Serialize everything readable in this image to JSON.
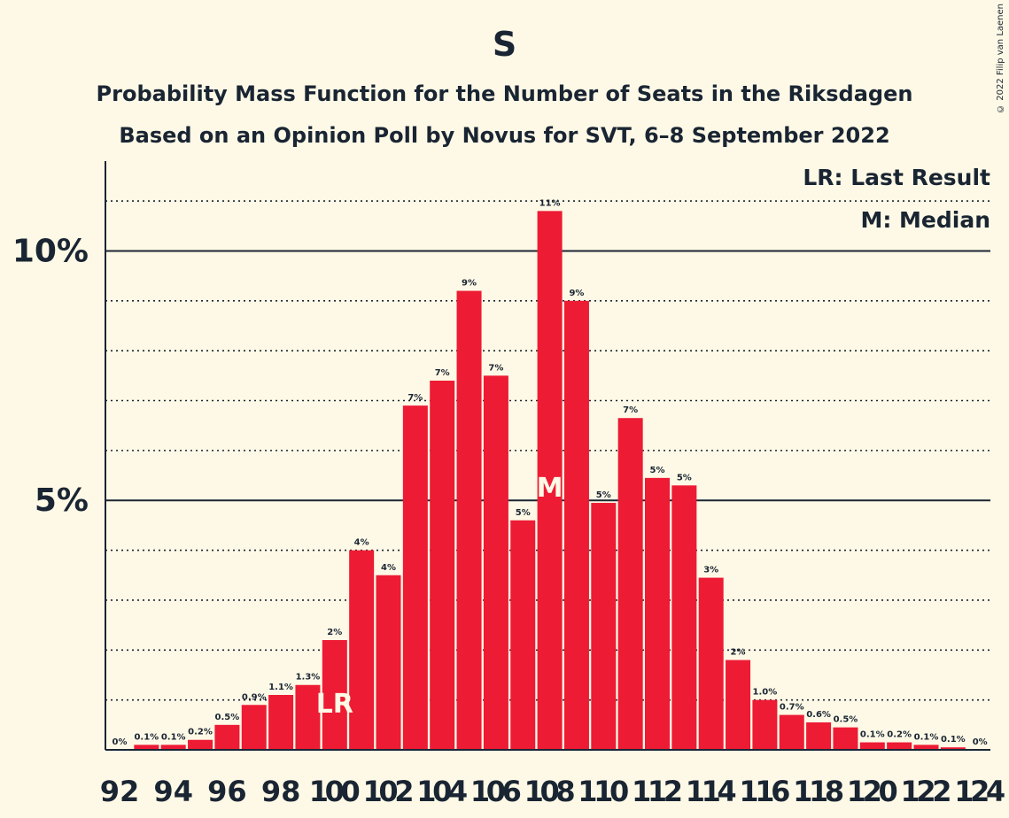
{
  "title": "S",
  "subtitle1": "Probability Mass Function for the Number of Seats in the Riksdagen",
  "subtitle2": "Based on an Opinion Poll by Novus for SVT, 6–8 September 2022",
  "copyright": "© 2022 Filip van Laenen",
  "legend": {
    "last_result": "LR: Last Result",
    "median": "M: Median"
  },
  "colors": {
    "bar": "#ed1b34",
    "background": "#fef9e6",
    "text": "#1a2533",
    "marker": "#fef9e6"
  },
  "chart_data": {
    "type": "bar",
    "x": [
      92,
      93,
      94,
      95,
      96,
      97,
      98,
      99,
      100,
      101,
      102,
      103,
      104,
      105,
      106,
      107,
      108,
      109,
      110,
      111,
      112,
      113,
      114,
      115,
      116,
      117,
      118,
      119,
      120,
      121,
      122,
      123,
      124
    ],
    "values": [
      0,
      0.1,
      0.1,
      0.2,
      0.5,
      0.9,
      1.1,
      1.3,
      2.2,
      4.0,
      3.5,
      6.9,
      7.4,
      9.2,
      7.5,
      4.6,
      10.8,
      9.0,
      4.95,
      6.65,
      5.45,
      5.3,
      3.45,
      1.8,
      1.0,
      0.7,
      0.55,
      0.45,
      0.15,
      0.15,
      0.1,
      0.05,
      0
    ],
    "labels": [
      "0%",
      "0.1%",
      "0.1%",
      "0.2%",
      "0.5%",
      "0.9%",
      "1.1%",
      "1.3%",
      "2%",
      "4%",
      "4%",
      "7%",
      "7%",
      "9%",
      "7%",
      "5%",
      "11%",
      "9%",
      "5%",
      "7%",
      "5%",
      "5%",
      "3%",
      "2%",
      "1.0%",
      "0.7%",
      "0.6%",
      "0.5%",
      "0.1%",
      "0.2%",
      "0.1%",
      "0.1%",
      "0%"
    ],
    "x_ticks": [
      92,
      94,
      96,
      98,
      100,
      102,
      104,
      106,
      108,
      110,
      112,
      114,
      116,
      118,
      120,
      122,
      124
    ],
    "y_ticks": [
      {
        "value": 5,
        "label": "5%"
      },
      {
        "value": 10,
        "label": "10%"
      }
    ],
    "ylim": [
      0,
      11.8
    ],
    "last_result": {
      "x": 100,
      "label": "LR"
    },
    "median": {
      "x": 108,
      "label": "M"
    }
  }
}
